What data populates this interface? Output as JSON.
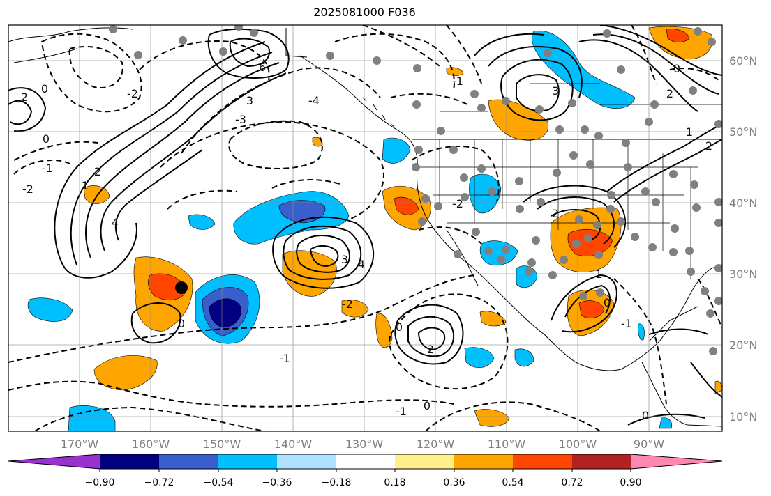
{
  "title": "2025081000 F036",
  "map": {
    "lon_ticks": [
      "170°W",
      "160°W",
      "150°W",
      "140°W",
      "130°W",
      "120°W",
      "110°W",
      "100°W",
      "90°W"
    ],
    "lat_ticks": [
      "60°N",
      "50°N",
      "40°N",
      "30°N",
      "20°N",
      "10°N"
    ],
    "gridlines": true,
    "contour_labels": [
      "-2",
      "-1",
      "0",
      "1",
      "2",
      "3",
      "4",
      "6",
      "-3",
      "-4",
      "0",
      "-1",
      "-2",
      "2",
      "3",
      "4",
      "-2",
      "0",
      "-1",
      "0",
      "1",
      "2",
      "3",
      "2",
      "0",
      "-1",
      "-2",
      "0",
      "1",
      "2",
      "0",
      "-1",
      "2",
      "0"
    ]
  },
  "colorbar": {
    "tick_labels": [
      "−0.90",
      "−0.72",
      "−0.54",
      "−0.36",
      "−0.18",
      "0.18",
      "0.36",
      "0.54",
      "0.72",
      "0.90"
    ],
    "colors": [
      "#9932cc",
      "#000080",
      "#3a5fcd",
      "#00bfff",
      "#b0e2ff",
      "#ffffff",
      "#fff08c",
      "#ffa500",
      "#ff4500",
      "#b22222",
      "#ff88b0"
    ]
  }
}
